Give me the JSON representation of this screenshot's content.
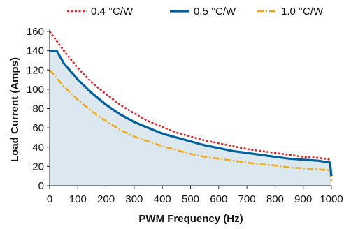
{
  "chart_data": {
    "type": "line",
    "title": "",
    "xlabel": "PWM Frequency (Hz)",
    "ylabel": "Load Current (Amps)",
    "xlim": [
      0,
      1000
    ],
    "ylim": [
      0,
      160
    ],
    "x_ticks": [
      0,
      100,
      200,
      300,
      400,
      500,
      600,
      700,
      800,
      900,
      1000
    ],
    "y_ticks": [
      0,
      20,
      40,
      60,
      80,
      100,
      120,
      140,
      160
    ],
    "grid": false,
    "legend_position": "top",
    "series": [
      {
        "name": "0.4 °C/W",
        "color": "#e0202a",
        "style": "dotted",
        "points": [
          [
            0,
            160
          ],
          [
            50,
            140
          ],
          [
            100,
            122
          ],
          [
            150,
            107
          ],
          [
            200,
            95
          ],
          [
            250,
            84
          ],
          [
            300,
            75
          ],
          [
            350,
            67
          ],
          [
            400,
            61
          ],
          [
            450,
            55
          ],
          [
            500,
            51
          ],
          [
            550,
            47
          ],
          [
            600,
            44
          ],
          [
            650,
            41
          ],
          [
            700,
            38
          ],
          [
            750,
            36
          ],
          [
            800,
            34
          ],
          [
            850,
            32
          ],
          [
            900,
            30
          ],
          [
            950,
            29
          ],
          [
            1000,
            27
          ]
        ]
      },
      {
        "name": "0.5 °C/W",
        "color": "#00609c",
        "style": "solid",
        "fill": "#dbe8ef",
        "points": [
          [
            0,
            140
          ],
          [
            25,
            140
          ],
          [
            50,
            127
          ],
          [
            100,
            110
          ],
          [
            150,
            96
          ],
          [
            200,
            84
          ],
          [
            250,
            74
          ],
          [
            300,
            66
          ],
          [
            350,
            60
          ],
          [
            400,
            54
          ],
          [
            450,
            50
          ],
          [
            500,
            46
          ],
          [
            550,
            42
          ],
          [
            600,
            39
          ],
          [
            650,
            36
          ],
          [
            700,
            34
          ],
          [
            750,
            32
          ],
          [
            800,
            30
          ],
          [
            850,
            28
          ],
          [
            900,
            27
          ],
          [
            950,
            26
          ],
          [
            995,
            24
          ],
          [
            1000,
            10
          ]
        ]
      },
      {
        "name": "1.0 °C/W",
        "color": "#f0a81e",
        "style": "dashdot",
        "points": [
          [
            0,
            120
          ],
          [
            50,
            103
          ],
          [
            100,
            89
          ],
          [
            150,
            77
          ],
          [
            200,
            67
          ],
          [
            250,
            58
          ],
          [
            300,
            51
          ],
          [
            350,
            46
          ],
          [
            400,
            41
          ],
          [
            450,
            37
          ],
          [
            500,
            33
          ],
          [
            550,
            30
          ],
          [
            600,
            28
          ],
          [
            650,
            26
          ],
          [
            700,
            24
          ],
          [
            750,
            22
          ],
          [
            800,
            21
          ],
          [
            850,
            19
          ],
          [
            900,
            18
          ],
          [
            950,
            17
          ],
          [
            995,
            16
          ],
          [
            1000,
            4
          ]
        ]
      }
    ]
  }
}
